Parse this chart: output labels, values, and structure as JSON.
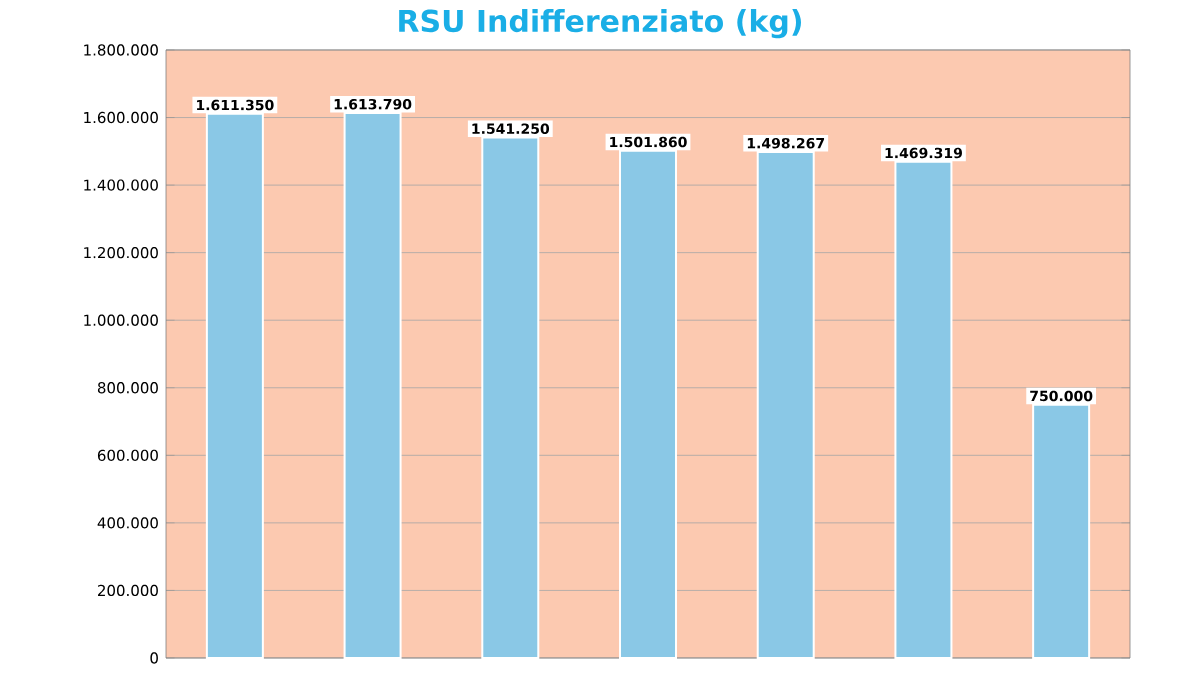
{
  "chart_data": {
    "type": "bar",
    "title": "RSU Indifferenziato (kg)",
    "categories": [
      null,
      null,
      null,
      null,
      null,
      null,
      null
    ],
    "values": [
      1611350,
      1613790,
      1541250,
      1501860,
      1498267,
      1469319,
      750000
    ],
    "value_labels": [
      "1.611.350",
      "1.613.790",
      "1.541.250",
      "1.501.860",
      "1.498.267",
      "1.469.319",
      "750.000"
    ],
    "color": "#8ac8e6",
    "ylim": [
      0,
      1800000
    ],
    "yticks": [
      {
        "value": 0,
        "label": "0"
      },
      {
        "value": 200000,
        "label": "200.000"
      },
      {
        "value": 400000,
        "label": "400.000"
      },
      {
        "value": 600000,
        "label": "600.000"
      },
      {
        "value": 800000,
        "label": "800.000"
      },
      {
        "value": 1000000,
        "label": "1.000.000"
      },
      {
        "value": 1200000,
        "label": "1.200.000"
      },
      {
        "value": 1400000,
        "label": "1.400.000"
      },
      {
        "value": 1600000,
        "label": "1.600.000"
      },
      {
        "value": 1800000,
        "label": "1.800.000"
      }
    ],
    "grid": "y"
  }
}
